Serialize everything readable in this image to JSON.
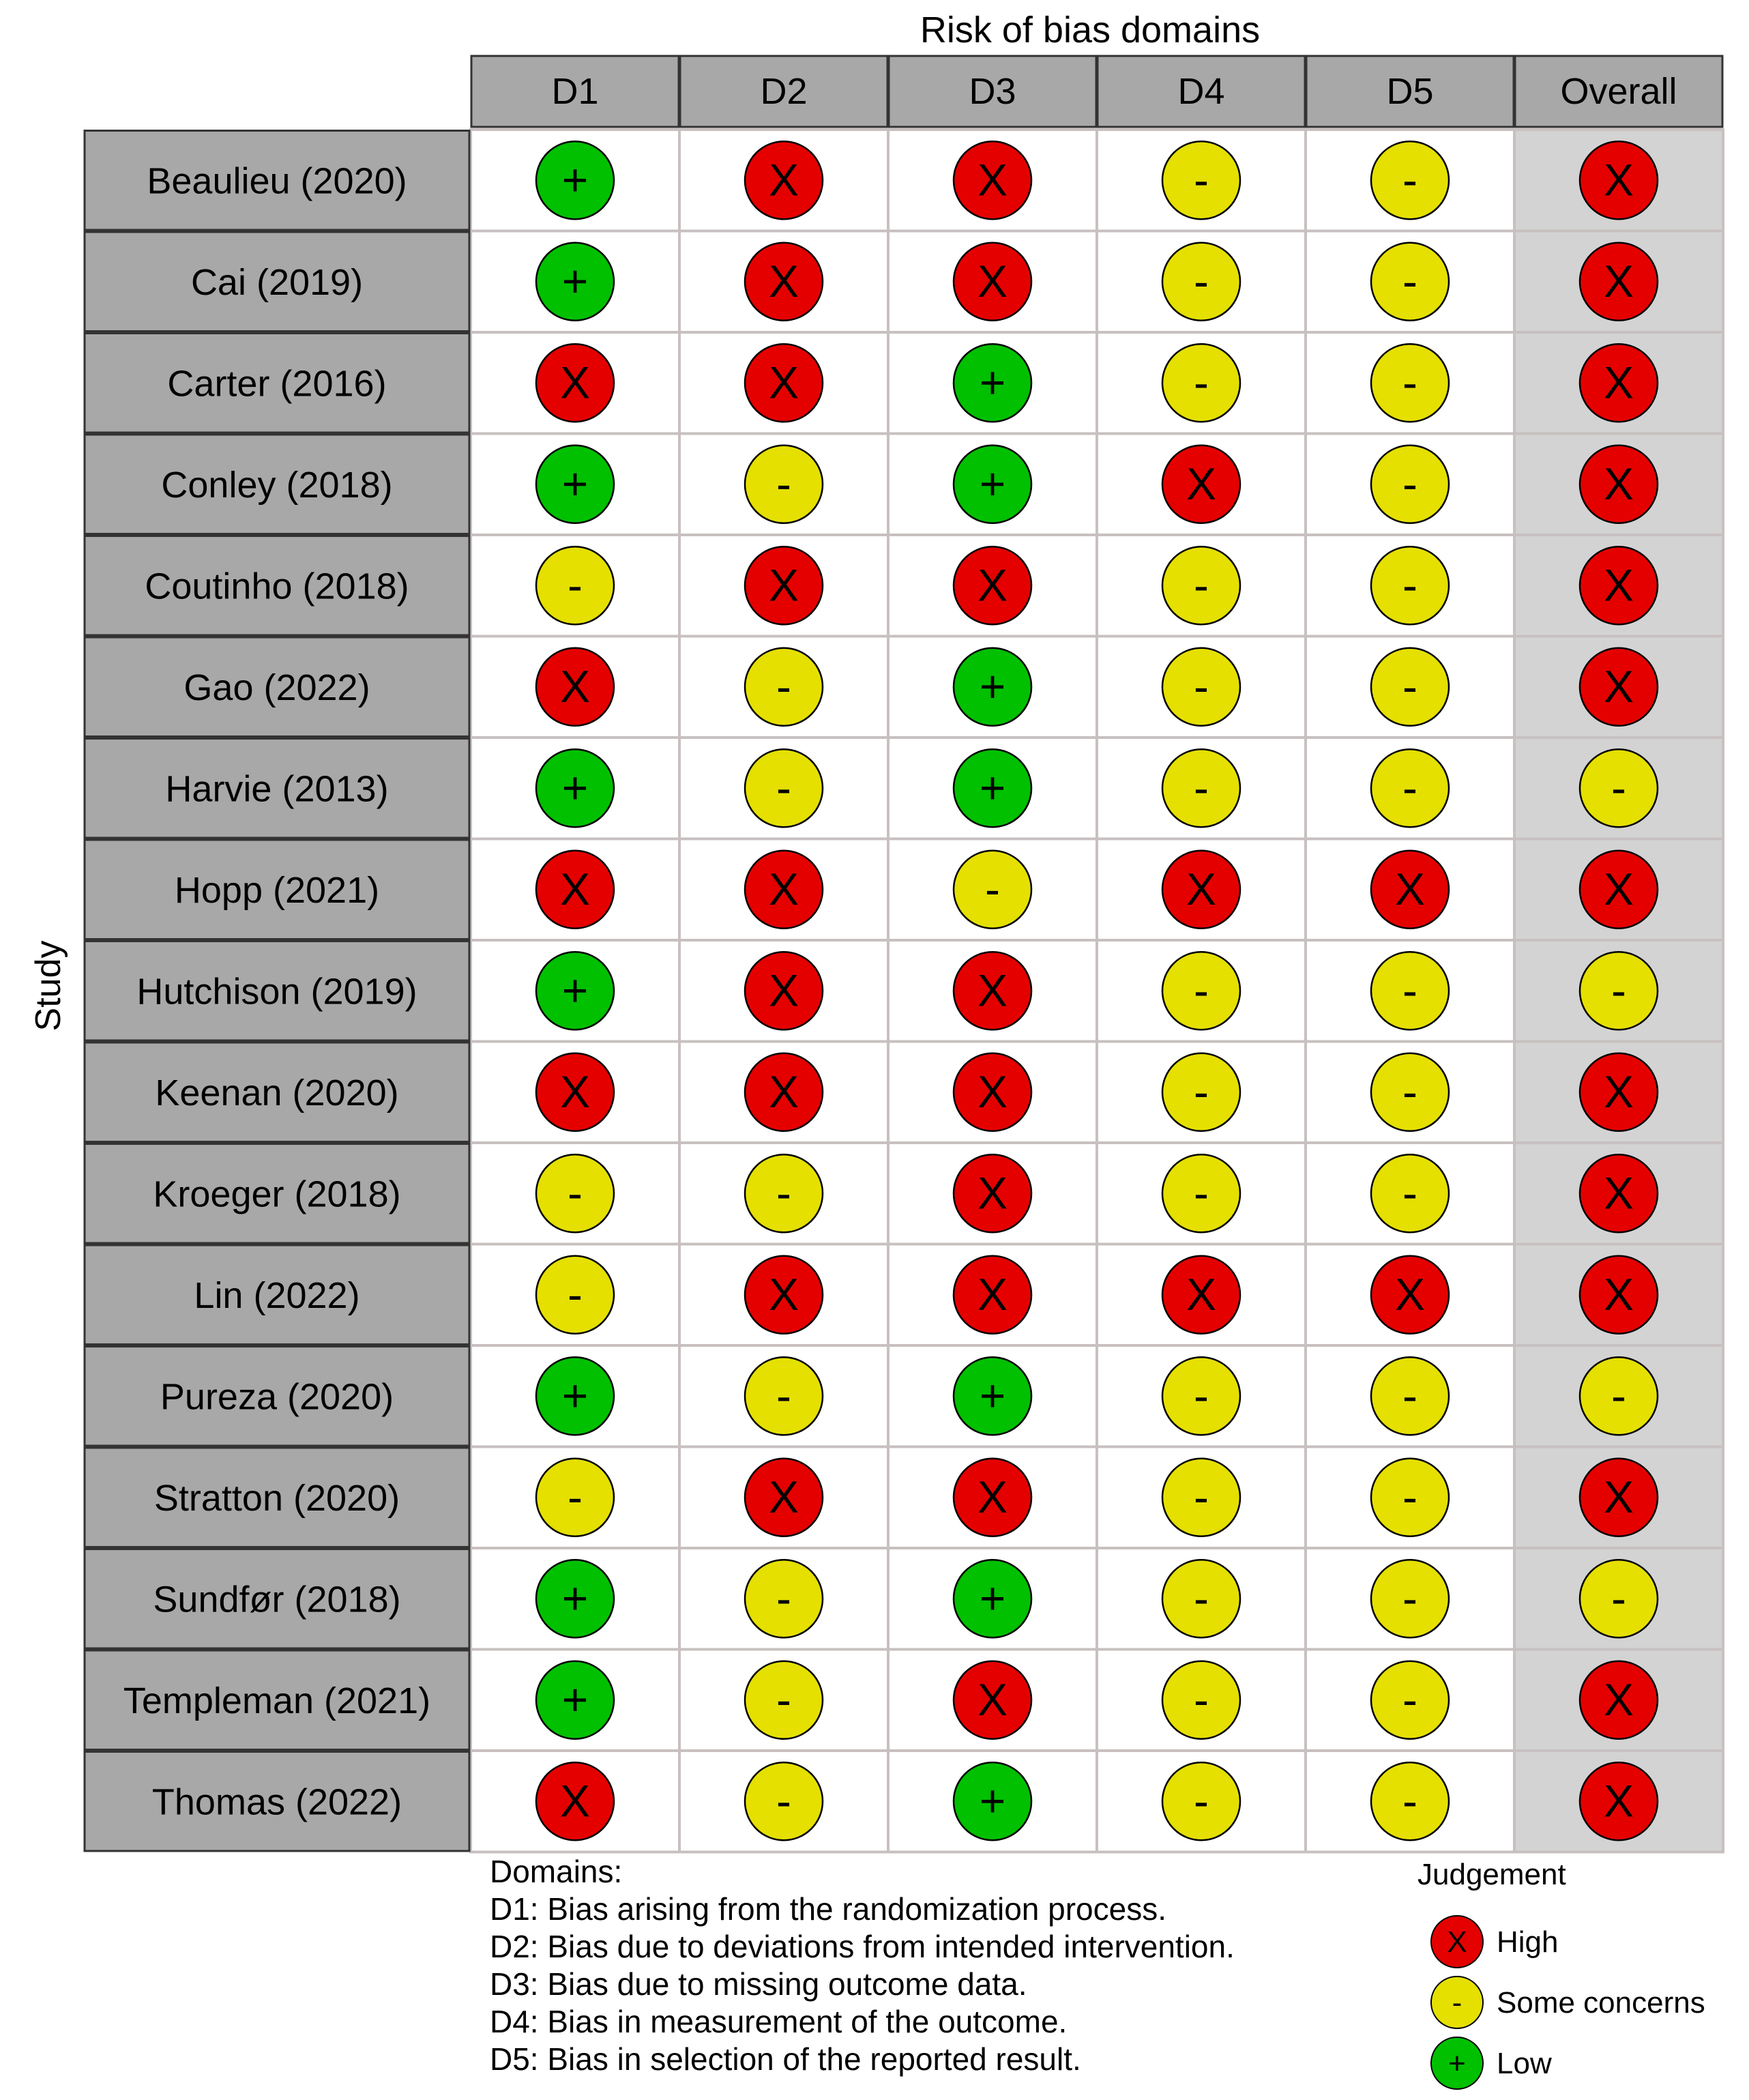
{
  "chart_data": {
    "type": "table",
    "title": "Risk of bias domains",
    "ylabel": "Study",
    "columns": [
      "D1",
      "D2",
      "D3",
      "D4",
      "D5",
      "Overall"
    ],
    "rows": [
      {
        "study": "Beaulieu (2020)",
        "judgements": [
          "low",
          "high",
          "high",
          "some",
          "some",
          "high"
        ]
      },
      {
        "study": "Cai (2019)",
        "judgements": [
          "low",
          "high",
          "high",
          "some",
          "some",
          "high"
        ]
      },
      {
        "study": "Carter (2016)",
        "judgements": [
          "high",
          "high",
          "low",
          "some",
          "some",
          "high"
        ]
      },
      {
        "study": "Conley (2018)",
        "judgements": [
          "low",
          "some",
          "low",
          "high",
          "some",
          "high"
        ]
      },
      {
        "study": "Coutinho (2018)",
        "judgements": [
          "some",
          "high",
          "high",
          "some",
          "some",
          "high"
        ]
      },
      {
        "study": "Gao (2022)",
        "judgements": [
          "high",
          "some",
          "low",
          "some",
          "some",
          "high"
        ]
      },
      {
        "study": "Harvie (2013)",
        "judgements": [
          "low",
          "some",
          "low",
          "some",
          "some",
          "some"
        ]
      },
      {
        "study": "Hopp (2021)",
        "judgements": [
          "high",
          "high",
          "some",
          "high",
          "high",
          "high"
        ]
      },
      {
        "study": "Hutchison (2019)",
        "judgements": [
          "low",
          "high",
          "high",
          "some",
          "some",
          "some"
        ]
      },
      {
        "study": "Keenan (2020)",
        "judgements": [
          "high",
          "high",
          "high",
          "some",
          "some",
          "high"
        ]
      },
      {
        "study": "Kroeger (2018)",
        "judgements": [
          "some",
          "some",
          "high",
          "some",
          "some",
          "high"
        ]
      },
      {
        "study": "Lin (2022)",
        "judgements": [
          "some",
          "high",
          "high",
          "high",
          "high",
          "high"
        ]
      },
      {
        "study": "Pureza (2020)",
        "judgements": [
          "low",
          "some",
          "low",
          "some",
          "some",
          "some"
        ]
      },
      {
        "study": "Stratton (2020)",
        "judgements": [
          "some",
          "high",
          "high",
          "some",
          "some",
          "high"
        ]
      },
      {
        "study": "Sundfør (2018)",
        "judgements": [
          "low",
          "some",
          "low",
          "some",
          "some",
          "some"
        ]
      },
      {
        "study": "Templeman (2021)",
        "judgements": [
          "low",
          "some",
          "high",
          "some",
          "some",
          "high"
        ]
      },
      {
        "study": "Thomas (2022)",
        "judgements": [
          "high",
          "some",
          "low",
          "some",
          "some",
          "high"
        ]
      }
    ],
    "judgement_styles": {
      "high": {
        "symbol": "X",
        "color": "#e50000",
        "label": "High"
      },
      "some": {
        "symbol": "-",
        "color": "#e5e000",
        "label": "Some concerns"
      },
      "low": {
        "symbol": "+",
        "color": "#00c000",
        "label": "Low"
      }
    },
    "legend": {
      "title": "Judgement",
      "order": [
        "high",
        "some",
        "low"
      ],
      "placement": "bottom-right"
    },
    "domains_key": {
      "title": "Domains:",
      "items": [
        "D1: Bias arising from the randomization process.",
        "D2: Bias due to deviations from intended intervention.",
        "D3: Bias due to missing outcome data.",
        "D4: Bias in measurement of the outcome.",
        "D5: Bias in selection of the reported result."
      ]
    },
    "colors": {
      "header_fill": "#a8a8a8",
      "study_fill": "#a8a8a8",
      "overall_fill": "#d3d3d3",
      "grid_line": "#c8c0c0",
      "border": "#333333"
    }
  }
}
